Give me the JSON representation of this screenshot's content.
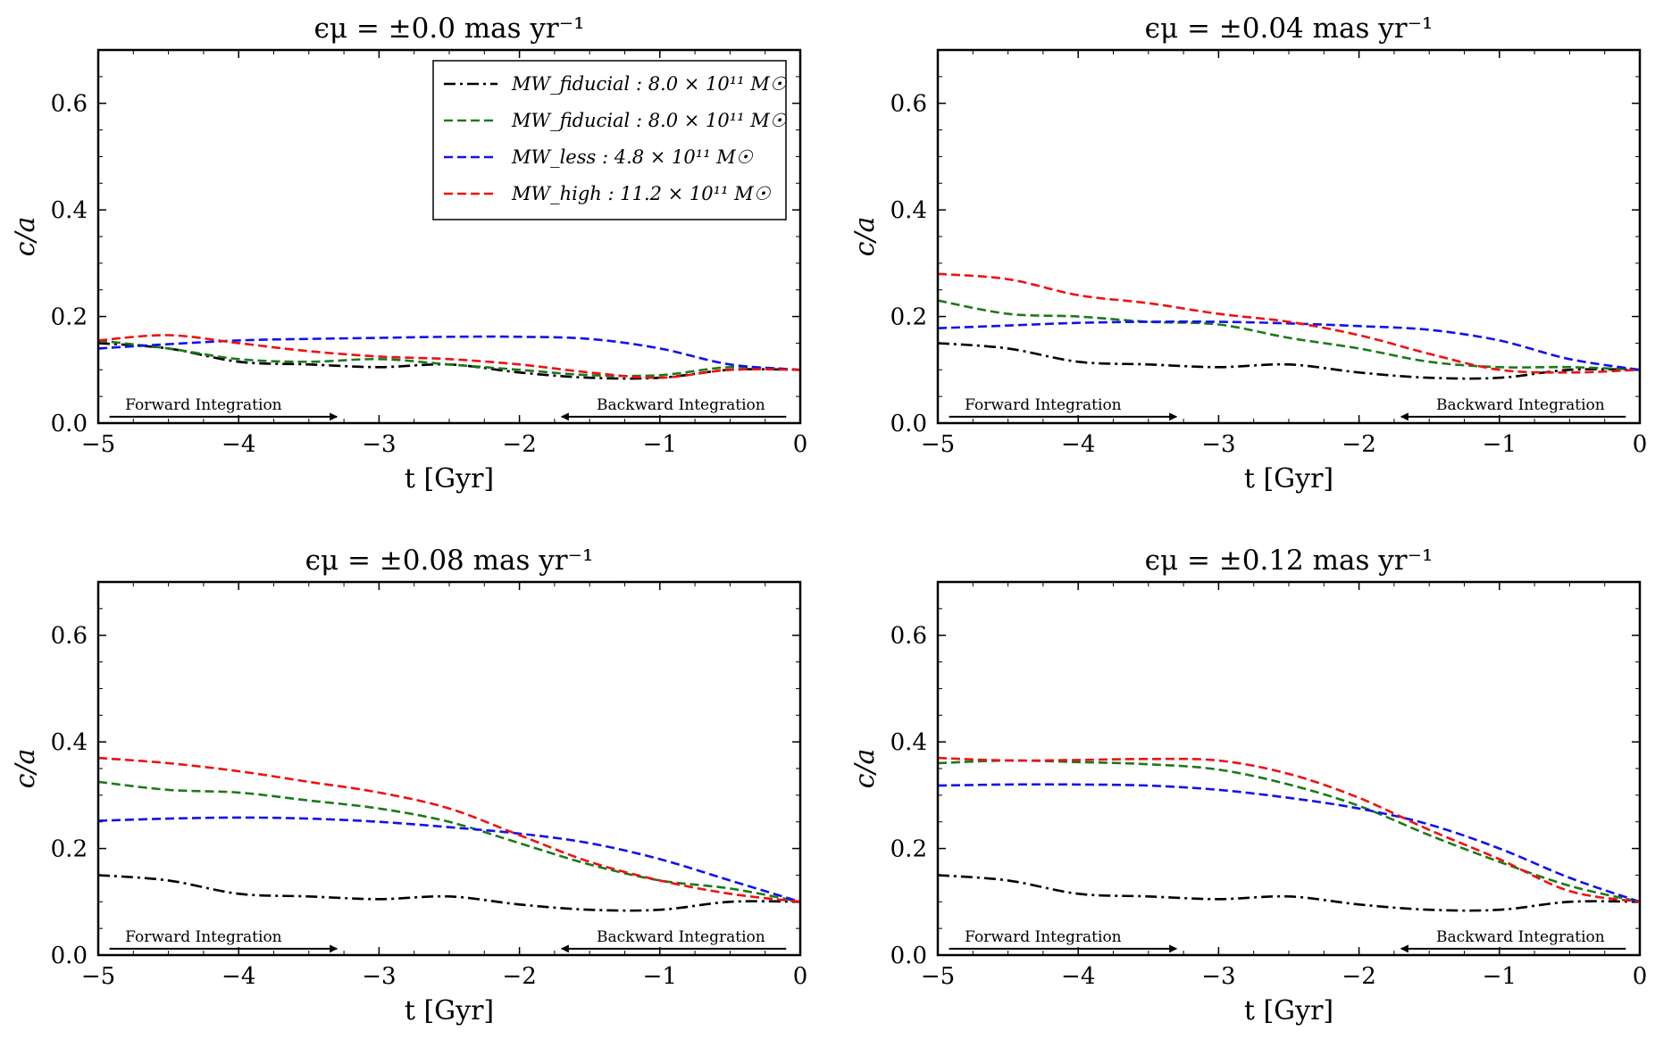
{
  "chart_data": [
    {
      "type": "line",
      "title": "ϵμ = ±0.0 mas yr⁻¹",
      "xlabel": "t [Gyr]",
      "ylabel": "c/a",
      "xlim": [
        -5,
        0
      ],
      "ylim": [
        0,
        0.7
      ],
      "xticks": [
        "−5",
        "−4",
        "−3",
        "−2",
        "−1",
        "0"
      ],
      "yticks": [
        "0.0",
        "0.2",
        "0.4",
        "0.6"
      ],
      "grid": false,
      "legend": "top-right",
      "annotations": [
        "Forward Integration",
        "Backward Integration"
      ],
      "x": [
        -5,
        -4.5,
        -4,
        -3.5,
        -3,
        -2.5,
        -2,
        -1.5,
        -1,
        -0.5,
        0
      ],
      "series": [
        {
          "name": "MW_fiducial : 8.0 × 10¹¹ M☉",
          "style": "dashdot",
          "color": "#000000",
          "values": [
            0.15,
            0.14,
            0.115,
            0.11,
            0.105,
            0.11,
            0.095,
            0.085,
            0.085,
            0.1,
            0.1
          ]
        },
        {
          "name": "MW_fiducial : 8.0 × 10¹¹ M☉",
          "style": "dashed",
          "color": "#1a7a1a",
          "values": [
            0.155,
            0.14,
            0.12,
            0.115,
            0.12,
            0.11,
            0.1,
            0.09,
            0.09,
            0.105,
            0.1
          ]
        },
        {
          "name": "MW_less : 4.8 × 10¹¹ M☉",
          "style": "dashed",
          "color": "#1111ee",
          "values": [
            0.14,
            0.148,
            0.155,
            0.158,
            0.16,
            0.162,
            0.162,
            0.158,
            0.14,
            0.11,
            0.1
          ]
        },
        {
          "name": "MW_high : 11.2 × 10¹¹ M☉",
          "style": "dashed",
          "color": "#ee1111",
          "values": [
            0.155,
            0.165,
            0.15,
            0.135,
            0.125,
            0.12,
            0.11,
            0.095,
            0.085,
            0.1,
            0.1
          ]
        }
      ]
    },
    {
      "type": "line",
      "title": "ϵμ = ±0.04 mas yr⁻¹",
      "xlabel": "t [Gyr]",
      "ylabel": "c/a",
      "xlim": [
        -5,
        0
      ],
      "ylim": [
        0,
        0.7
      ],
      "xticks": [
        "−5",
        "−4",
        "−3",
        "−2",
        "−1",
        "0"
      ],
      "yticks": [
        "0.0",
        "0.2",
        "0.4",
        "0.6"
      ],
      "grid": false,
      "annotations": [
        "Forward Integration",
        "Backward Integration"
      ],
      "x": [
        -5,
        -4.5,
        -4,
        -3.5,
        -3,
        -2.5,
        -2,
        -1.5,
        -1,
        -0.5,
        0
      ],
      "series": [
        {
          "style": "dashdot",
          "color": "#000000",
          "values": [
            0.15,
            0.14,
            0.115,
            0.11,
            0.105,
            0.11,
            0.095,
            0.085,
            0.085,
            0.1,
            0.1
          ]
        },
        {
          "style": "dashed",
          "color": "#1a7a1a",
          "values": [
            0.23,
            0.205,
            0.2,
            0.19,
            0.185,
            0.16,
            0.14,
            0.115,
            0.105,
            0.105,
            0.1
          ]
        },
        {
          "style": "dashed",
          "color": "#1111ee",
          "values": [
            0.178,
            0.183,
            0.188,
            0.19,
            0.19,
            0.187,
            0.182,
            0.175,
            0.155,
            0.12,
            0.1
          ]
        },
        {
          "style": "dashed",
          "color": "#ee1111",
          "values": [
            0.28,
            0.27,
            0.24,
            0.225,
            0.205,
            0.19,
            0.165,
            0.13,
            0.1,
            0.095,
            0.1
          ]
        }
      ]
    },
    {
      "type": "line",
      "title": "ϵμ = ±0.08 mas yr⁻¹",
      "xlabel": "t [Gyr]",
      "ylabel": "c/a",
      "xlim": [
        -5,
        0
      ],
      "ylim": [
        0,
        0.7
      ],
      "xticks": [
        "−5",
        "−4",
        "−3",
        "−2",
        "−1",
        "0"
      ],
      "yticks": [
        "0.0",
        "0.2",
        "0.4",
        "0.6"
      ],
      "grid": false,
      "annotations": [
        "Forward Integration",
        "Backward Integration"
      ],
      "x": [
        -5,
        -4.5,
        -4,
        -3.5,
        -3,
        -2.5,
        -2,
        -1.5,
        -1,
        -0.5,
        0
      ],
      "series": [
        {
          "style": "dashdot",
          "color": "#000000",
          "values": [
            0.15,
            0.14,
            0.115,
            0.11,
            0.105,
            0.11,
            0.095,
            0.085,
            0.085,
            0.1,
            0.1
          ]
        },
        {
          "style": "dashed",
          "color": "#1a7a1a",
          "values": [
            0.325,
            0.31,
            0.305,
            0.29,
            0.275,
            0.25,
            0.21,
            0.17,
            0.14,
            0.125,
            0.1
          ]
        },
        {
          "style": "dashed",
          "color": "#1111ee",
          "values": [
            0.252,
            0.256,
            0.258,
            0.256,
            0.25,
            0.24,
            0.228,
            0.21,
            0.18,
            0.14,
            0.1
          ]
        },
        {
          "style": "dashed",
          "color": "#ee1111",
          "values": [
            0.37,
            0.36,
            0.345,
            0.325,
            0.305,
            0.275,
            0.225,
            0.175,
            0.14,
            0.115,
            0.1
          ]
        }
      ]
    },
    {
      "type": "line",
      "title": "ϵμ = ±0.12 mas yr⁻¹",
      "xlabel": "t [Gyr]",
      "ylabel": "c/a",
      "xlim": [
        -5,
        0
      ],
      "ylim": [
        0,
        0.7
      ],
      "xticks": [
        "−5",
        "−4",
        "−3",
        "−2",
        "−1",
        "0"
      ],
      "yticks": [
        "0.0",
        "0.2",
        "0.4",
        "0.6"
      ],
      "grid": false,
      "annotations": [
        "Forward Integration",
        "Backward Integration"
      ],
      "x": [
        -5,
        -4.5,
        -4,
        -3.5,
        -3,
        -2.5,
        -2,
        -1.5,
        -1,
        -0.5,
        0
      ],
      "series": [
        {
          "style": "dashdot",
          "color": "#000000",
          "values": [
            0.15,
            0.14,
            0.115,
            0.11,
            0.105,
            0.11,
            0.095,
            0.085,
            0.085,
            0.1,
            0.1
          ]
        },
        {
          "style": "dashed",
          "color": "#1a7a1a",
          "values": [
            0.36,
            0.365,
            0.362,
            0.358,
            0.348,
            0.32,
            0.28,
            0.225,
            0.175,
            0.13,
            0.1
          ]
        },
        {
          "style": "dashed",
          "color": "#1111ee",
          "values": [
            0.318,
            0.32,
            0.32,
            0.318,
            0.31,
            0.295,
            0.275,
            0.245,
            0.2,
            0.145,
            0.1
          ]
        },
        {
          "style": "dashed",
          "color": "#ee1111",
          "values": [
            0.37,
            0.365,
            0.366,
            0.368,
            0.365,
            0.34,
            0.295,
            0.235,
            0.18,
            0.12,
            0.1
          ]
        }
      ]
    }
  ]
}
